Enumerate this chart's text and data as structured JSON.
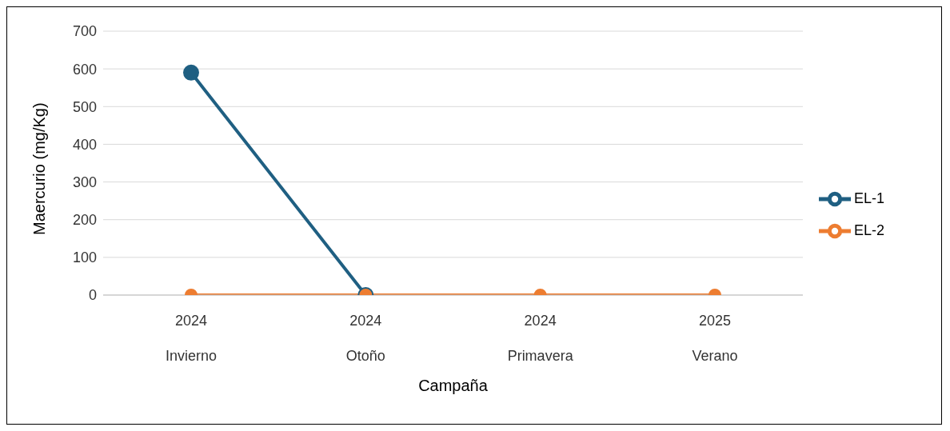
{
  "chart_data": {
    "type": "line",
    "xlabel": "Campaña",
    "ylabel": "Maercurio (mg/Kg)",
    "categories": [
      "2024\nInvierno",
      "2024\nOtoño",
      "2024\nPrimavera",
      "2025\nVerano"
    ],
    "series": [
      {
        "name": "EL-1",
        "color": "#1f5f82",
        "values": [
          590,
          0,
          null,
          null
        ]
      },
      {
        "name": "EL-2",
        "color": "#ed7d31",
        "values": [
          0,
          0,
          0,
          0
        ]
      }
    ],
    "ylim": [
      0,
      700
    ],
    "yticks": [
      0,
      100,
      200,
      300,
      400,
      500,
      600,
      700
    ],
    "grid": "y",
    "legend": "right",
    "marker": "circle",
    "line_style": "solid"
  }
}
